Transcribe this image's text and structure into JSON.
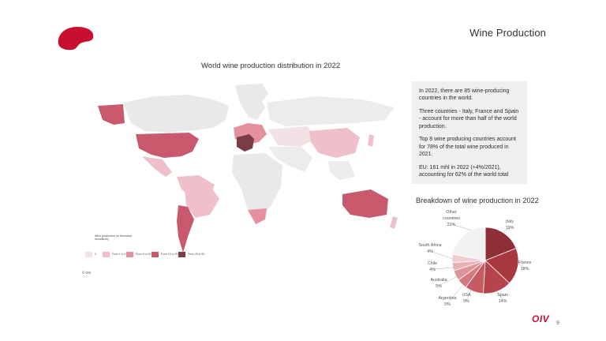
{
  "header": {
    "title": "Wine Production"
  },
  "map": {
    "title": "World wine production distribution in 2022",
    "legend_title": "Wine production (in thousand hectolitres)",
    "legend": [
      {
        "label": "0",
        "color": "#f2e2e5"
      },
      {
        "label": "From 1 to 5",
        "color": "#efc0ca"
      },
      {
        "label": "From 5 to 15",
        "color": "#e4909f"
      },
      {
        "label": "From 15 to 25",
        "color": "#c95a6e"
      },
      {
        "label": "From 25 to 50",
        "color": "#7a3c47"
      }
    ],
    "source": "© OIV"
  },
  "info": {
    "paragraphs": [
      "In 2022, there are 85 wine-producing countries in the world.",
      "Three countries - Italy, France and Spain - account for more than half of the world production.",
      "Top 8 wine producing countries account for 78% of the total wine produced in 2021.",
      "EU: 161 mhl in 2022 (+4%/2021), accounting for 62% of the world total"
    ]
  },
  "chart_data": {
    "type": "pie",
    "title": "Breakdown of wine production in 2022",
    "slices": [
      {
        "name": "Italy",
        "value": 19,
        "label": "19%",
        "color": "#8e2f36"
      },
      {
        "name": "France",
        "value": 18,
        "label": "18%",
        "color": "#a83740"
      },
      {
        "name": "Spain",
        "value": 14,
        "label": "14%",
        "color": "#b7434c"
      },
      {
        "name": "USA",
        "value": 9,
        "label": "9%",
        "color": "#c65b63"
      },
      {
        "name": "Argentina",
        "value": 5,
        "label": "5%",
        "color": "#d3797f"
      },
      {
        "name": "Australia",
        "value": 5,
        "label": "5%",
        "color": "#dd959a"
      },
      {
        "name": "Chile",
        "value": 4,
        "label": "4%",
        "color": "#e7b1b5"
      },
      {
        "name": "South Africa",
        "value": 4,
        "label": "4%",
        "color": "#f0cdd0"
      },
      {
        "name": "Other countries",
        "value": 22,
        "label": "22%",
        "color": "#f2f2f2"
      }
    ]
  },
  "footer": {
    "brand": "OIV",
    "page_number": "9"
  },
  "colors": {
    "accent": "#c8102e"
  }
}
